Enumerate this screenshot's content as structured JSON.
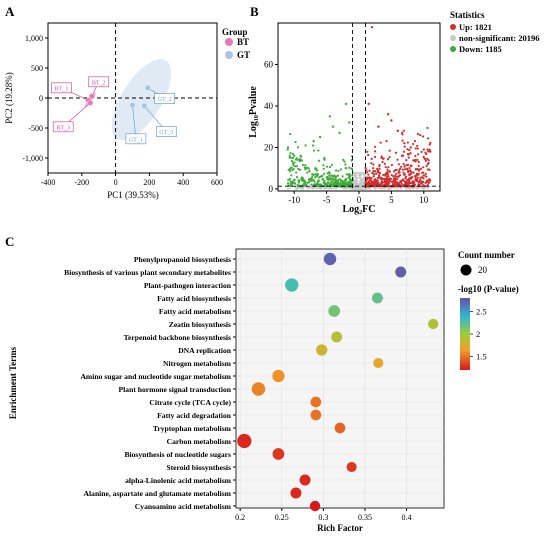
{
  "panels": {
    "A": {
      "letter": "A",
      "xlabel": "PC1 (39.53%)",
      "ylabel": "PC2 (19.28%)",
      "xlim": [
        -400,
        600
      ],
      "ylim": [
        -1250,
        1250
      ],
      "xticks": [
        "-400",
        "-200",
        "0",
        "200",
        "400",
        "600"
      ],
      "yticks": [
        "1,000",
        "500",
        "0",
        "-500",
        "-1,000"
      ],
      "legend_title": "Group",
      "legend": [
        {
          "name": "BT",
          "color": "#e67ab4"
        },
        {
          "name": "GT",
          "color": "#a7c4e3"
        }
      ],
      "points": [
        {
          "group": "BT",
          "label": "BT_1",
          "x": -160,
          "y": -40,
          "lx": -320,
          "ly": 170
        },
        {
          "group": "BT",
          "label": "BT_2",
          "x": -140,
          "y": 30,
          "lx": -100,
          "ly": 270
        },
        {
          "group": "BT",
          "label": "BT_3",
          "x": -150,
          "y": -80,
          "lx": -310,
          "ly": -480
        },
        {
          "group": "GT",
          "label": "GT_1",
          "x": 100,
          "y": -120,
          "lx": 120,
          "ly": -680
        },
        {
          "group": "GT",
          "label": "GT_2",
          "x": 190,
          "y": 170,
          "lx": 290,
          "ly": -10
        },
        {
          "group": "GT",
          "label": "GT_3",
          "x": 170,
          "y": -130,
          "lx": 300,
          "ly": -560
        }
      ]
    },
    "B": {
      "letter": "B",
      "xlabel": "Log₂FC",
      "ylabel": "Log₁₀Pvalue",
      "xlim": [
        -12.5,
        12.5
      ],
      "ylim": [
        -1,
        80
      ],
      "xticks": [
        "-10",
        "-5",
        "0",
        "5",
        "10"
      ],
      "yticks": [
        "0",
        "20",
        "40",
        "60"
      ],
      "legend_title": "Statistics",
      "legend": [
        {
          "name": "Up: 1821",
          "color": "#cf2e2e"
        },
        {
          "name": "non-significant: 20196",
          "color": "#c8c8c8"
        },
        {
          "name": "Down: 1185",
          "color": "#3daa3a"
        }
      ],
      "vlines": [
        -1,
        1
      ],
      "hline": 1.3
    },
    "C": {
      "letter": "C",
      "xlabel": "Rich Factor",
      "ylabel": "Enrichment Terms",
      "xticks": [
        "0.2",
        "0.25",
        "0.3",
        "0.35",
        "0.4"
      ],
      "size_title": "Count number",
      "size_value": "20",
      "color_title": "-log10 (P-value)",
      "color_ticks": [
        "2.5",
        "2",
        "1.5"
      ]
    }
  },
  "chart_data": [
    {
      "type": "scatter",
      "panel": "A",
      "xlabel": "PC1 (39.53%)",
      "ylabel": "PC2 (19.28%)",
      "xlim": [
        -400,
        600
      ],
      "ylim": [
        -1250,
        1250
      ],
      "series": [
        {
          "name": "BT",
          "x": [
            -160,
            -140,
            -150
          ],
          "y": [
            -40,
            30,
            -80
          ]
        },
        {
          "name": "GT",
          "x": [
            100,
            190,
            170
          ],
          "y": [
            -120,
            170,
            -130
          ]
        }
      ]
    },
    {
      "type": "scatter",
      "panel": "B",
      "xlabel": "Log₂FC",
      "ylabel": "Log₁₀Pvalue",
      "series": [
        {
          "name": "Up: 1821"
        },
        {
          "name": "non-significant: 20196"
        },
        {
          "name": "Down: 1185"
        }
      ]
    },
    {
      "type": "scatter",
      "panel": "C",
      "xlabel": "Rich Factor",
      "ylabel": "Enrichment Terms",
      "xlim": [
        0.195,
        0.445
      ],
      "color_range": [
        1.2,
        2.8
      ],
      "terms": [
        {
          "term": "Phenylpropanoid biosynthesis",
          "rich": 0.308,
          "count": 18,
          "p": 2.72
        },
        {
          "term": "Biosynthesis of various plant secondary metabolites",
          "rich": 0.393,
          "count": 12,
          "p": 2.75
        },
        {
          "term": "Plant-pathogen interaction",
          "rich": 0.262,
          "count": 22,
          "p": 2.3
        },
        {
          "term": "Fatty acid biosynthesis",
          "rich": 0.365,
          "count": 12,
          "p": 2.2
        },
        {
          "term": "Fatty acid metabolism",
          "rich": 0.313,
          "count": 15,
          "p": 2.15
        },
        {
          "term": "Zeatin biosynthesis",
          "rich": 0.432,
          "count": 10,
          "p": 1.92
        },
        {
          "term": "Terpenoid backbone biosynthesis",
          "rich": 0.316,
          "count": 12,
          "p": 1.9
        },
        {
          "term": "DNA replication",
          "rich": 0.298,
          "count": 13,
          "p": 1.8
        },
        {
          "term": "Nitrogen metabolism",
          "rich": 0.366,
          "count": 9,
          "p": 1.7
        },
        {
          "term": "Amino sugar and nucleotide sugar metabolism",
          "rich": 0.246,
          "count": 17,
          "p": 1.6
        },
        {
          "term": "Plant hormone signal transduction",
          "rich": 0.222,
          "count": 23,
          "p": 1.55
        },
        {
          "term": "Citrate cycle (TCA cycle)",
          "rich": 0.291,
          "count": 11,
          "p": 1.5
        },
        {
          "term": "Fatty acid degradation",
          "rich": 0.291,
          "count": 11,
          "p": 1.5
        },
        {
          "term": "Tryptophan metabolism",
          "rich": 0.32,
          "count": 11,
          "p": 1.45
        },
        {
          "term": "Carbon metabolism",
          "rich": 0.205,
          "count": 27,
          "p": 1.25
        },
        {
          "term": "Biosynthesis of nucleotide sugars",
          "rich": 0.246,
          "count": 15,
          "p": 1.3
        },
        {
          "term": "Steroid biosynthesis",
          "rich": 0.334,
          "count": 9,
          "p": 1.3
        },
        {
          "term": "alpha-Linolenic acid metabolism",
          "rich": 0.278,
          "count": 12,
          "p": 1.25
        },
        {
          "term": "Alanine, aspartate and glutamate metabolism",
          "rich": 0.267,
          "count": 12,
          "p": 1.25
        },
        {
          "term": "Cyanoamino acid metabolism",
          "rich": 0.29,
          "count": 10,
          "p": 1.2
        }
      ]
    }
  ]
}
